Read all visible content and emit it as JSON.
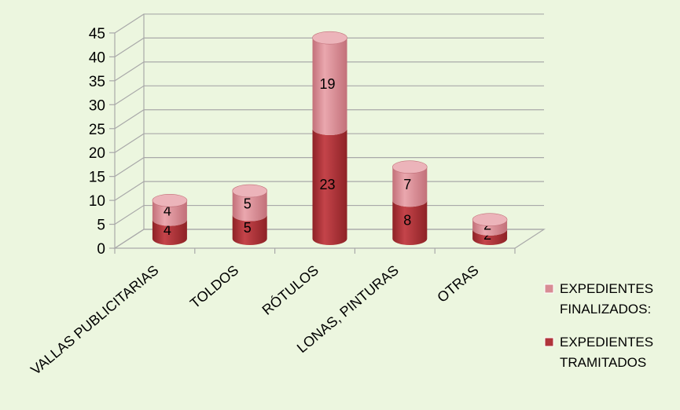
{
  "chart_data": {
    "type": "bar",
    "style": "3d-stacked-cylinder",
    "title": "",
    "xlabel": "",
    "ylabel": "",
    "ylim": [
      0,
      45
    ],
    "yticks": [
      0,
      5,
      10,
      15,
      20,
      25,
      30,
      35,
      40,
      45
    ],
    "grid": true,
    "legend_position": "right",
    "categories": [
      "VALLAS PUBLICITARIAS",
      "TOLDOS",
      "RÓTULOS",
      "LONAS, PINTURAS",
      "OTRAS"
    ],
    "series": [
      {
        "name": "EXPEDIENTES TRAMITADOS",
        "values": [
          4,
          5,
          23,
          8,
          2
        ],
        "color": "#b0353b"
      },
      {
        "name": "EXPEDIENTES FINALIZADOS:",
        "values": [
          4,
          5,
          19,
          7,
          2
        ],
        "color": "#d88c94"
      }
    ],
    "legend": [
      {
        "lines": [
          "EXPEDIENTES",
          "FINALIZADOS:"
        ],
        "color": "#d88c94"
      },
      {
        "lines": [
          "EXPEDIENTES",
          "TRAMITADOS"
        ],
        "color": "#b0353b"
      }
    ]
  }
}
